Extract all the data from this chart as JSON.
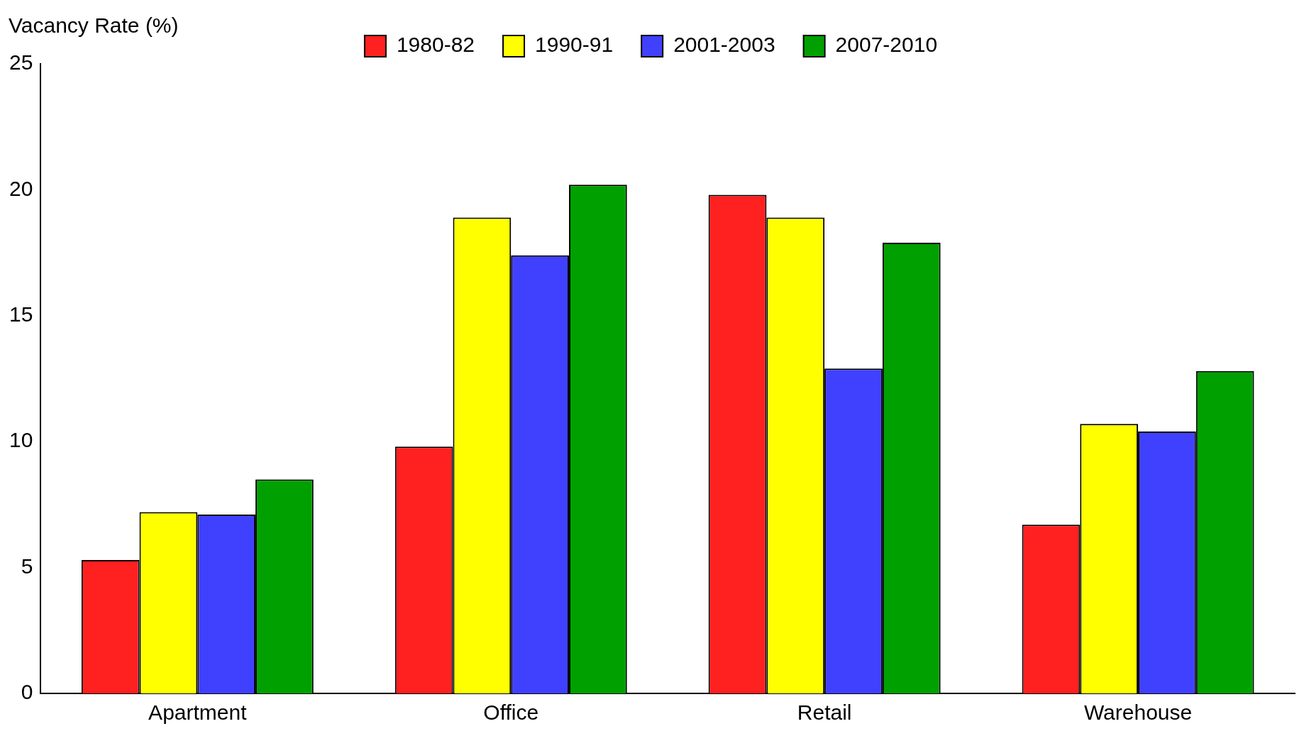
{
  "chart_data": {
    "type": "bar",
    "ylabel": "Vacancy Rate (%)",
    "categories": [
      "Apartment",
      "Office",
      "Retail",
      "Warehouse"
    ],
    "series": [
      {
        "name": "1980-82",
        "color": "#ff2020",
        "values": [
          5.3,
          9.8,
          19.8,
          6.7
        ]
      },
      {
        "name": "1990-91",
        "color": "#ffff00",
        "values": [
          7.2,
          18.9,
          18.9,
          10.7
        ]
      },
      {
        "name": "2001-2003",
        "color": "#4040ff",
        "values": [
          7.1,
          17.4,
          12.9,
          10.4
        ]
      },
      {
        "name": "2007-2010",
        "color": "#00a000",
        "values": [
          8.5,
          20.2,
          17.9,
          12.8
        ]
      }
    ],
    "ylim": [
      0,
      25
    ],
    "yticks": [
      0,
      5,
      10,
      15,
      20,
      25
    ],
    "grid": false,
    "legend": "top"
  }
}
